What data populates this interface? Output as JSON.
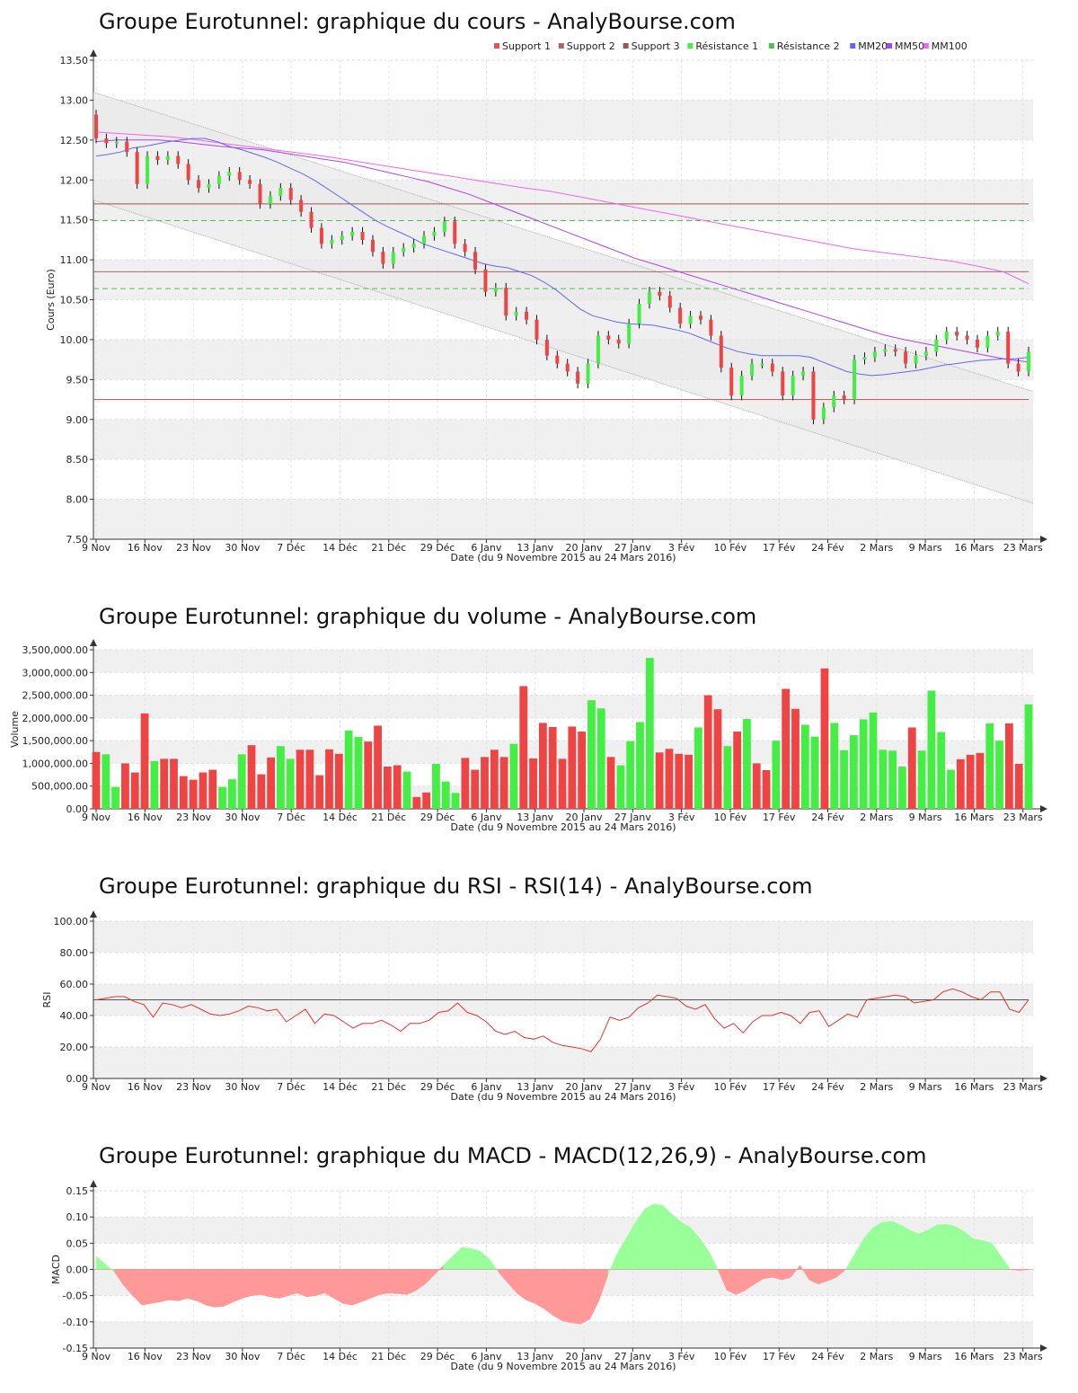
{
  "colors": {
    "up": "#44ee44",
    "down": "#ee4444",
    "wick": "#111111",
    "support1": "#dd5555",
    "support2": "#aa6666",
    "support3": "#995555",
    "resistance": "#55bb55",
    "mm20": "#6666ee",
    "mm50": "#aa44ee",
    "mm100": "#ee66ee",
    "rsi": "#dd3333",
    "macd_pos": "#99ff99",
    "macd_neg": "#ff9999",
    "band": "#f0f0f0"
  },
  "dates": [
    "9 Nov",
    "16 Nov",
    "23 Nov",
    "30 Nov",
    "7 Déc",
    "14 Déc",
    "21 Déc",
    "29 Déc",
    "6 Janv",
    "13 Janv",
    "20 Janv",
    "27 Janv",
    "3 Fév",
    "10 Fév",
    "17 Fév",
    "24 Fév",
    "2 Mars",
    "9 Mars",
    "16 Mars",
    "23 Mars"
  ],
  "xlabel": "Date (du 9 Novembre 2015 au 24 Mars 2016)",
  "chart_data": [
    {
      "id": "price",
      "type": "candlestick",
      "title": "Groupe Eurotunnel: graphique du cours - AnalyBourse.com",
      "ylabel": "Cours (Euro)",
      "ylim": [
        7.5,
        13.5
      ],
      "yticks": [
        "7.50",
        "8.00",
        "8.50",
        "9.00",
        "9.50",
        "10.00",
        "10.50",
        "11.00",
        "11.50",
        "12.00",
        "12.50",
        "13.00",
        "13.50"
      ],
      "legend": [
        "Support 1",
        "Support 2",
        "Support 3",
        "Résistance 1",
        "Résistance 2",
        "MM20",
        "MM50",
        "MM100"
      ],
      "legend_placement": "top-right",
      "support": [
        9.25,
        10.85,
        11.7
      ],
      "resistance": [
        11.49,
        10.64
      ],
      "close": [
        12.52,
        12.46,
        12.48,
        12.35,
        11.95,
        12.3,
        12.25,
        12.3,
        12.2,
        12.0,
        11.9,
        11.95,
        12.05,
        12.1,
        12.0,
        11.95,
        11.7,
        11.8,
        11.9,
        11.75,
        11.6,
        11.4,
        11.2,
        11.25,
        11.3,
        11.35,
        11.25,
        11.1,
        10.95,
        11.1,
        11.15,
        11.2,
        11.3,
        11.35,
        11.48,
        11.2,
        11.1,
        10.88,
        10.6,
        10.65,
        10.3,
        10.35,
        10.25,
        10.0,
        9.8,
        9.7,
        9.6,
        9.45,
        9.7,
        10.05,
        10.0,
        9.95,
        10.2,
        10.45,
        10.6,
        10.55,
        10.4,
        10.2,
        10.3,
        10.25,
        10.05,
        9.65,
        9.3,
        9.55,
        9.7,
        9.7,
        9.6,
        9.3,
        9.55,
        9.6,
        9.0,
        9.15,
        9.3,
        9.25,
        9.75,
        9.78,
        9.85,
        9.88,
        9.85,
        9.7,
        9.8,
        9.85,
        10.0,
        10.1,
        10.05,
        10.0,
        9.9,
        10.05,
        10.1,
        9.7,
        9.6,
        9.85
      ],
      "ohlc_open_offset_note": "",
      "mm20": [
        12.3,
        12.32,
        12.35,
        12.4,
        12.42,
        12.45,
        12.48,
        12.5,
        12.52,
        12.52,
        12.48,
        12.42,
        12.38,
        12.33,
        12.28,
        12.22,
        12.15,
        12.08,
        12.0,
        11.9,
        11.8,
        11.7,
        11.6,
        11.5,
        11.42,
        11.35,
        11.28,
        11.2,
        11.15,
        11.1,
        11.05,
        11.0,
        10.95,
        10.92,
        10.9,
        10.85,
        10.8,
        10.72,
        10.62,
        10.5,
        10.38,
        10.3,
        10.26,
        10.22,
        10.2,
        10.19,
        10.18,
        10.15,
        10.12,
        10.08,
        10.02,
        9.96,
        9.9,
        9.85,
        9.82,
        9.8,
        9.8,
        9.8,
        9.8,
        9.78,
        9.72,
        9.66,
        9.6,
        9.57,
        9.55,
        9.56,
        9.58,
        9.6,
        9.62,
        9.65,
        9.68,
        9.7,
        9.72,
        9.74,
        9.75,
        9.76,
        9.76,
        9.78
      ],
      "mm50": [
        12.48,
        12.5,
        12.5,
        12.5,
        12.48,
        12.45,
        12.42,
        12.4,
        12.38,
        12.34,
        12.3,
        12.26,
        12.22,
        12.16,
        12.1,
        12.04,
        11.98,
        11.9,
        11.82,
        11.72,
        11.62,
        11.52,
        11.42,
        11.32,
        11.22,
        11.12,
        11.02,
        10.94,
        10.86,
        10.78,
        10.7,
        10.62,
        10.54,
        10.46,
        10.38,
        10.3,
        10.22,
        10.14,
        10.06,
        10.0,
        9.95,
        9.9,
        9.85,
        9.8,
        9.75,
        9.72
      ],
      "mm100": [
        12.6,
        12.58,
        12.56,
        12.54,
        12.5,
        12.46,
        12.42,
        12.38,
        12.34,
        12.3,
        12.25,
        12.2,
        12.15,
        12.1,
        12.05,
        12.0,
        11.95,
        11.9,
        11.86,
        11.8,
        11.74,
        11.68,
        11.62,
        11.56,
        11.5,
        11.44,
        11.38,
        11.32,
        11.26,
        11.2,
        11.14,
        11.1,
        11.06,
        11.02,
        10.98,
        10.92,
        10.85,
        10.7
      ]
    },
    {
      "id": "volume",
      "type": "bar",
      "title": "Groupe Eurotunnel: graphique du volume - AnalyBourse.com",
      "ylabel": "Volume",
      "ylim": [
        0,
        3500000
      ],
      "yticks": [
        "0.00",
        "500,000.00",
        "1,000,000.00",
        "1,500,000.00",
        "2,000,000.00",
        "2,500,000.00",
        "3,000,000.00",
        "3,500,000.00"
      ],
      "values": [
        1250000,
        1200000,
        480000,
        1000000,
        800000,
        2100000,
        1050000,
        1100000,
        1100000,
        720000,
        640000,
        800000,
        860000,
        480000,
        650000,
        1200000,
        1400000,
        760000,
        1130000,
        1380000,
        1100000,
        1300000,
        1300000,
        740000,
        1310000,
        1210000,
        1720000,
        1580000,
        1480000,
        1830000,
        930000,
        960000,
        820000,
        260000,
        360000,
        990000,
        600000,
        350000,
        1120000,
        860000,
        1140000,
        1300000,
        1140000,
        1430000,
        2700000,
        1110000,
        1890000,
        1800000,
        1100000,
        1810000,
        1700000,
        2390000,
        2210000,
        1140000,
        960000,
        1490000,
        1910000,
        3320000,
        1240000,
        1320000,
        1210000,
        1190000,
        1790000,
        2500000,
        2190000,
        1380000,
        1700000,
        1980000,
        1000000,
        850000,
        1500000,
        2640000,
        2200000,
        1850000,
        1590000,
        3090000,
        1890000,
        1290000,
        1620000,
        1970000,
        2120000,
        1300000,
        1280000,
        930000,
        1790000,
        1280000,
        2600000,
        1690000,
        860000,
        1090000,
        1190000,
        1230000,
        1880000,
        1500000,
        1880000,
        990000,
        2300000
      ],
      "up": [
        0,
        1,
        1,
        0,
        0,
        0,
        1,
        0,
        0,
        0,
        0,
        0,
        0,
        1,
        1,
        1,
        0,
        0,
        0,
        1,
        1,
        0,
        0,
        0,
        0,
        0,
        1,
        1,
        0,
        0,
        0,
        0,
        1,
        0,
        0,
        1,
        1,
        1,
        0,
        0,
        0,
        0,
        0,
        1,
        0,
        0,
        0,
        0,
        0,
        0,
        0,
        1,
        1,
        0,
        1,
        1,
        1,
        1,
        0,
        0,
        0,
        0,
        1,
        0,
        0,
        1,
        0,
        1,
        0,
        0,
        1,
        0,
        0,
        1,
        1,
        0,
        1,
        1,
        1,
        1,
        1,
        1,
        1,
        1,
        0,
        1,
        1,
        1,
        1,
        0,
        0,
        0,
        1,
        1,
        0,
        0,
        1
      ]
    },
    {
      "id": "rsi",
      "type": "line",
      "title": "Groupe Eurotunnel: graphique du RSI - RSI(14) - AnalyBourse.com",
      "ylabel": "RSI",
      "ylim": [
        0,
        100
      ],
      "yticks": [
        "0.00",
        "20.00",
        "40.00",
        "60.00",
        "80.00",
        "100.00"
      ],
      "reference": 50,
      "values": [
        50,
        51,
        52,
        52,
        49,
        47,
        39,
        48,
        47,
        45,
        47,
        44,
        41,
        40,
        41,
        43,
        46,
        45,
        43,
        44,
        36,
        40,
        44,
        35,
        41,
        40,
        36,
        32,
        35,
        35,
        37,
        34,
        30,
        35,
        35,
        37,
        42,
        43,
        48,
        42,
        40,
        36,
        30,
        28,
        30,
        26,
        25,
        27,
        23,
        21,
        20,
        19,
        17,
        25,
        39,
        37,
        39,
        45,
        48,
        53,
        52,
        51,
        46,
        44,
        47,
        38,
        32,
        35,
        29,
        36,
        40,
        40,
        42,
        40,
        35,
        42,
        43,
        33,
        37,
        41,
        39,
        50,
        51,
        52,
        53,
        52,
        48,
        49,
        50,
        55,
        57,
        55,
        52,
        50,
        55,
        55,
        44,
        42,
        50
      ]
    },
    {
      "id": "macd",
      "type": "area",
      "title": "Groupe Eurotunnel: graphique du MACD - MACD(12,26,9) - AnalyBourse.com",
      "ylabel": "MACD",
      "ylim": [
        -0.15,
        0.15
      ],
      "yticks": [
        "-0.15",
        "-0.10",
        "-0.05",
        "0.00",
        "0.05",
        "0.10",
        "0.15"
      ],
      "values": [
        0.025,
        0.01,
        -0.005,
        -0.03,
        -0.05,
        -0.068,
        -0.065,
        -0.062,
        -0.058,
        -0.06,
        -0.055,
        -0.06,
        -0.068,
        -0.072,
        -0.07,
        -0.062,
        -0.055,
        -0.05,
        -0.048,
        -0.052,
        -0.055,
        -0.05,
        -0.045,
        -0.052,
        -0.05,
        -0.045,
        -0.055,
        -0.065,
        -0.068,
        -0.062,
        -0.055,
        -0.048,
        -0.045,
        -0.046,
        -0.048,
        -0.04,
        -0.028,
        -0.01,
        0.008,
        0.025,
        0.042,
        0.04,
        0.035,
        0.02,
        -0.005,
        -0.025,
        -0.045,
        -0.058,
        -0.065,
        -0.075,
        -0.088,
        -0.098,
        -0.102,
        -0.104,
        -0.095,
        -0.06,
        -0.01,
        0.03,
        0.06,
        0.09,
        0.115,
        0.125,
        0.122,
        0.105,
        0.09,
        0.08,
        0.06,
        0.035,
        0.0,
        -0.04,
        -0.048,
        -0.04,
        -0.028,
        -0.018,
        -0.015,
        -0.02,
        -0.015,
        0.008,
        -0.02,
        -0.028,
        -0.022,
        -0.015,
        0.0,
        0.03,
        0.06,
        0.08,
        0.09,
        0.092,
        0.085,
        0.075,
        0.068,
        0.075,
        0.085,
        0.086,
        0.082,
        0.072,
        0.058,
        0.055,
        0.05,
        0.025,
        0.0,
        -0.002,
        0.0
      ]
    }
  ]
}
